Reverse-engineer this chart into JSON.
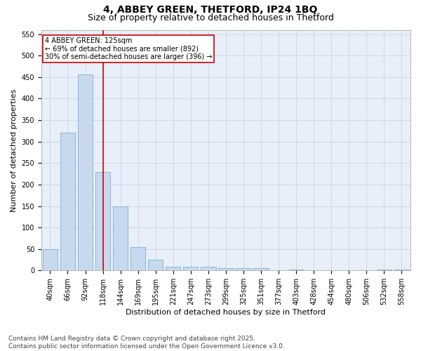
{
  "title1": "4, ABBEY GREEN, THETFORD, IP24 1BQ",
  "title2": "Size of property relative to detached houses in Thetford",
  "xlabel": "Distribution of detached houses by size in Thetford",
  "ylabel": "Number of detached properties",
  "categories": [
    "40sqm",
    "66sqm",
    "92sqm",
    "118sqm",
    "144sqm",
    "169sqm",
    "195sqm",
    "221sqm",
    "247sqm",
    "273sqm",
    "299sqm",
    "325sqm",
    "351sqm",
    "377sqm",
    "403sqm",
    "428sqm",
    "454sqm",
    "480sqm",
    "506sqm",
    "532sqm",
    "558sqm"
  ],
  "values": [
    50,
    320,
    457,
    230,
    150,
    55,
    25,
    8,
    8,
    9,
    5,
    5,
    5,
    0,
    3,
    0,
    0,
    0,
    0,
    2,
    2
  ],
  "bar_color": "#c8d9ef",
  "bar_edgecolor": "#7bafd4",
  "bar_linewidth": 0.6,
  "grid_color": "#ccd9e8",
  "bg_color": "#e8eff8",
  "vline_color": "#cc0000",
  "annotation_text": "4 ABBEY GREEN: 125sqm\n← 69% of detached houses are smaller (892)\n30% of semi-detached houses are larger (396) →",
  "annotation_box_color": "white",
  "annotation_box_edgecolor": "#cc0000",
  "ylim": [
    0,
    560
  ],
  "yticks": [
    0,
    50,
    100,
    150,
    200,
    250,
    300,
    350,
    400,
    450,
    500,
    550
  ],
  "footer": "Contains HM Land Registry data © Crown copyright and database right 2025.\nContains public sector information licensed under the Open Government Licence v3.0.",
  "title1_fontsize": 10,
  "title2_fontsize": 9,
  "axis_label_fontsize": 8,
  "tick_fontsize": 7,
  "annotation_fontsize": 7,
  "footer_fontsize": 6.5
}
